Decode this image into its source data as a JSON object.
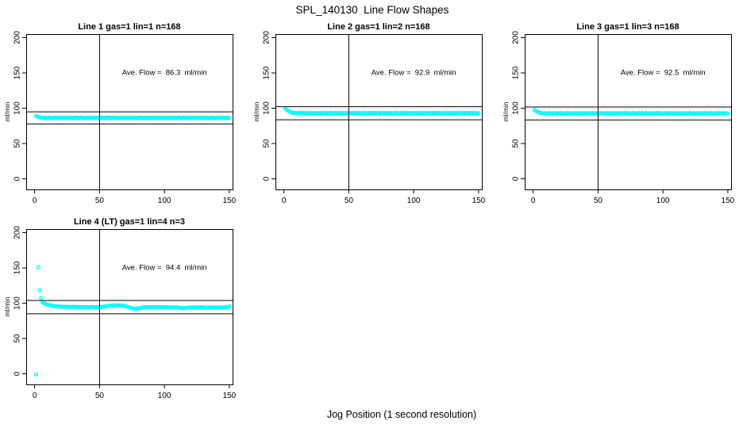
{
  "figure": {
    "title": "SPL_140130  Line Flow Shapes",
    "xlabel": "Jog Position (1 second resolution)",
    "background_color": "#ffffff",
    "axis_color": "#000000"
  },
  "chart_data": {
    "type": "scatter",
    "point_style": "open-circle",
    "point_color": "#00ffff",
    "grid": false,
    "ylabel": "ml/min",
    "x_ticks": [
      0,
      50,
      100,
      150
    ],
    "y_ticks": [
      0,
      50,
      100,
      150,
      200
    ],
    "xlim": [
      -6.5,
      152.5
    ],
    "ylim": [
      -15,
      205
    ],
    "vline_x": 50,
    "panels": [
      {
        "title": "Line 1 gas=1 lin=1 n=168",
        "annotation": "Ave. Flow =  86.3  ml/min",
        "avg_flow": 86.3,
        "ref_upper": 94.9,
        "ref_lower": 77.7,
        "x_start": 1,
        "y_values": [
          89.0,
          88.0,
          87.3,
          86.9,
          86.6,
          86.6,
          86.0,
          86.7,
          85.7,
          86.3,
          86.8,
          85.8,
          86.4,
          85.6,
          86.5,
          86.1,
          86.7,
          85.9,
          86.4,
          86.8,
          85.7,
          86.2,
          86.6,
          85.6,
          86.3,
          86.7,
          86.0,
          86.5,
          85.8,
          86.4,
          86.6,
          86.0,
          86.7,
          85.7,
          86.3,
          86.8,
          85.8,
          86.4,
          85.6,
          86.5,
          86.1,
          86.7,
          85.9,
          86.4,
          86.8,
          85.7,
          86.2,
          86.6,
          85.6,
          86.3,
          86.7,
          86.0,
          86.5,
          85.8,
          86.4,
          86.6,
          86.0,
          86.7,
          85.7,
          86.3,
          86.8,
          85.8,
          86.4,
          85.6,
          86.5,
          86.1,
          86.7,
          85.9,
          86.4,
          86.8,
          85.7,
          86.2,
          86.6,
          85.6,
          86.3,
          86.7,
          86.0,
          86.5,
          85.8,
          86.4,
          86.6,
          86.0,
          86.7,
          85.7,
          86.3,
          86.8,
          85.8,
          86.4,
          85.6,
          86.5,
          86.1,
          86.7,
          85.9,
          86.4,
          86.8,
          85.7,
          86.2,
          86.6,
          85.6,
          86.3,
          86.7,
          86.0,
          86.5,
          85.8,
          86.4,
          86.6,
          86.0,
          86.7,
          85.7,
          86.3,
          86.8,
          85.8,
          86.4,
          85.6,
          86.5,
          86.1,
          86.7,
          85.9,
          86.4,
          86.8,
          85.7,
          86.2,
          86.6,
          85.6,
          86.3,
          86.7,
          86.0,
          86.5,
          85.8,
          86.4,
          86.6,
          86.0,
          86.7,
          85.7,
          86.3,
          86.8,
          85.8,
          86.4,
          85.6,
          86.5,
          86.1,
          86.7,
          85.9,
          86.4,
          86.8,
          85.7,
          86.2,
          86.6,
          85.6,
          86.3
        ]
      },
      {
        "title": "Line 2 gas=1 lin=2 n=168",
        "annotation": "Ave. Flow =  92.9  ml/min",
        "avg_flow": 92.9,
        "ref_upper": 102.2,
        "ref_lower": 83.6,
        "x_start": 1,
        "y_values": [
          99.5,
          98.2,
          96.8,
          95.6,
          94.6,
          93.9,
          93.4,
          93.4,
          92.7,
          93.0,
          93.5,
          92.5,
          93.1,
          92.3,
          93.2,
          92.8,
          93.4,
          92.6,
          93.1,
          93.5,
          92.4,
          92.9,
          93.3,
          92.3,
          93.0,
          93.4,
          92.7,
          93.2,
          92.5,
          93.1,
          93.3,
          92.7,
          93.4,
          92.4,
          93.0,
          93.5,
          92.5,
          93.1,
          92.3,
          93.2,
          92.8,
          93.4,
          92.6,
          93.1,
          93.5,
          92.4,
          92.9,
          93.3,
          92.3,
          93.0,
          93.4,
          92.7,
          93.2,
          92.5,
          93.1,
          93.3,
          92.7,
          93.4,
          92.4,
          93.0,
          93.5,
          92.5,
          93.1,
          92.3,
          93.2,
          92.8,
          93.4,
          92.6,
          93.1,
          93.5,
          92.4,
          92.9,
          93.3,
          92.3,
          93.0,
          93.4,
          92.7,
          93.2,
          92.5,
          93.1,
          93.3,
          92.7,
          93.4,
          92.4,
          93.0,
          93.5,
          92.5,
          93.1,
          92.3,
          93.2,
          92.8,
          93.4,
          92.6,
          93.1,
          93.5,
          92.4,
          92.9,
          93.3,
          92.3,
          93.0,
          93.4,
          92.7,
          93.2,
          92.5,
          93.1,
          93.3,
          92.7,
          93.4,
          92.4,
          93.0,
          93.5,
          92.5,
          93.1,
          92.3,
          93.2,
          92.8,
          93.4,
          92.6,
          93.1,
          93.5,
          92.4,
          92.9,
          93.3,
          92.3,
          93.0,
          93.4,
          92.7,
          93.2,
          92.5,
          93.1,
          93.3,
          92.7,
          93.4,
          92.4,
          93.0,
          93.5,
          92.5,
          93.1,
          92.3,
          93.2,
          92.8,
          93.4,
          92.6,
          93.1,
          93.5,
          92.4,
          92.9,
          93.3,
          92.3,
          93.0
        ]
      },
      {
        "title": "Line 3 gas=1 lin=3 n=168",
        "annotation": "Ave. Flow =  92.5  ml/min",
        "avg_flow": 92.5,
        "ref_upper": 101.8,
        "ref_lower": 83.3,
        "x_start": 1,
        "y_values": [
          97.6,
          96.4,
          95.2,
          94.3,
          93.7,
          93.3,
          93.0,
          92.4,
          93.1,
          92.1,
          92.7,
          93.2,
          92.2,
          92.8,
          92.0,
          92.9,
          92.5,
          93.1,
          92.3,
          92.8,
          93.2,
          92.1,
          92.6,
          93.0,
          92.0,
          92.7,
          93.1,
          92.4,
          92.9,
          92.2,
          92.8,
          93.0,
          92.4,
          93.1,
          92.1,
          92.7,
          93.2,
          92.2,
          92.8,
          92.0,
          92.9,
          92.5,
          93.1,
          92.3,
          92.8,
          93.2,
          92.1,
          92.6,
          93.0,
          92.0,
          92.7,
          93.1,
          92.4,
          92.9,
          92.2,
          92.8,
          93.0,
          92.4,
          93.1,
          92.1,
          92.7,
          93.2,
          92.2,
          92.8,
          92.0,
          92.9,
          92.5,
          93.1,
          92.3,
          92.8,
          93.2,
          92.1,
          92.6,
          93.0,
          92.0,
          92.7,
          93.1,
          92.4,
          92.9,
          92.2,
          92.8,
          93.0,
          92.4,
          93.1,
          92.1,
          92.7,
          93.2,
          92.2,
          92.8,
          92.0,
          92.9,
          92.5,
          93.1,
          92.3,
          92.8,
          93.2,
          92.1,
          92.6,
          93.0,
          92.0,
          92.7,
          93.1,
          92.4,
          92.9,
          92.2,
          92.8,
          93.0,
          92.4,
          93.1,
          92.1,
          92.7,
          93.2,
          92.2,
          92.8,
          92.0,
          92.9,
          92.5,
          93.1,
          92.3,
          92.8,
          93.2,
          92.1,
          92.6,
          93.0,
          92.0,
          92.7,
          93.1,
          92.4,
          92.9,
          92.2,
          92.8,
          93.0,
          92.4,
          93.1,
          92.1,
          92.7,
          93.2,
          92.2,
          92.8,
          92.0,
          92.9,
          92.5,
          93.1,
          92.3,
          92.8,
          93.2,
          92.1,
          92.6,
          93.0,
          92.0
        ]
      },
      {
        "title": "Line 4 (LT) gas=1 lin=4 n=3",
        "annotation": "Ave. Flow =  94.4  ml/min",
        "avg_flow": 94.4,
        "ref_upper": 103.8,
        "ref_lower": 85.0,
        "outlier_points": [
          [
            1,
            -1
          ],
          [
            3,
            151
          ],
          [
            4,
            118
          ],
          [
            5,
            107.5
          ]
        ],
        "x_start": 6,
        "y_values": [
          101.5,
          100.2,
          99.2,
          98.4,
          97.8,
          97.3,
          96.9,
          96.5,
          96.2,
          95.9,
          95.7,
          95.5,
          95.4,
          95.2,
          95.1,
          95.0,
          94.8,
          95.1,
          94.7,
          94.9,
          94.6,
          94.8,
          94.5,
          94.7,
          94.9,
          94.5,
          94.6,
          94.8,
          94.4,
          94.6,
          94.3,
          94.6,
          94.2,
          94.5,
          94.7,
          94.3,
          94.1,
          94.4,
          94.6,
          94.2,
          94.4,
          94.1,
          94.3,
          94.5,
          94.2,
          94.4,
          94.7,
          95.0,
          95.3,
          95.6,
          95.9,
          96.2,
          96.4,
          96.6,
          96.8,
          96.9,
          97.0,
          97.0,
          96.9,
          96.8,
          96.9,
          96.7,
          96.5,
          96.2,
          95.8,
          95.2,
          94.6,
          94.0,
          93.4,
          92.9,
          92.6,
          92.4,
          92.3,
          92.4,
          92.6,
          92.9,
          93.2,
          93.6,
          93.9,
          94.2,
          94.4,
          94.3,
          94.5,
          94.2,
          94.4,
          94.6,
          94.3,
          94.5,
          94.7,
          94.4,
          94.2,
          94.5,
          94.3,
          94.6,
          94.4,
          94.2,
          94.4,
          94.1,
          94.3,
          94.0,
          93.8,
          94.1,
          93.9,
          94.2,
          94.0,
          93.7,
          93.4,
          93.2,
          93.0,
          92.9,
          93.1,
          93.3,
          93.5,
          93.8,
          94.0,
          93.7,
          93.9,
          94.1,
          93.8,
          94.0,
          94.2,
          93.9,
          94.1,
          93.8,
          94.0,
          93.6,
          93.8,
          93.5,
          93.7,
          93.9,
          93.6,
          93.8,
          93.5,
          93.7,
          93.9,
          94.0,
          93.7,
          93.9,
          94.1,
          93.8,
          94.0,
          94.2,
          93.9,
          94.1,
          95.4
        ]
      }
    ]
  }
}
